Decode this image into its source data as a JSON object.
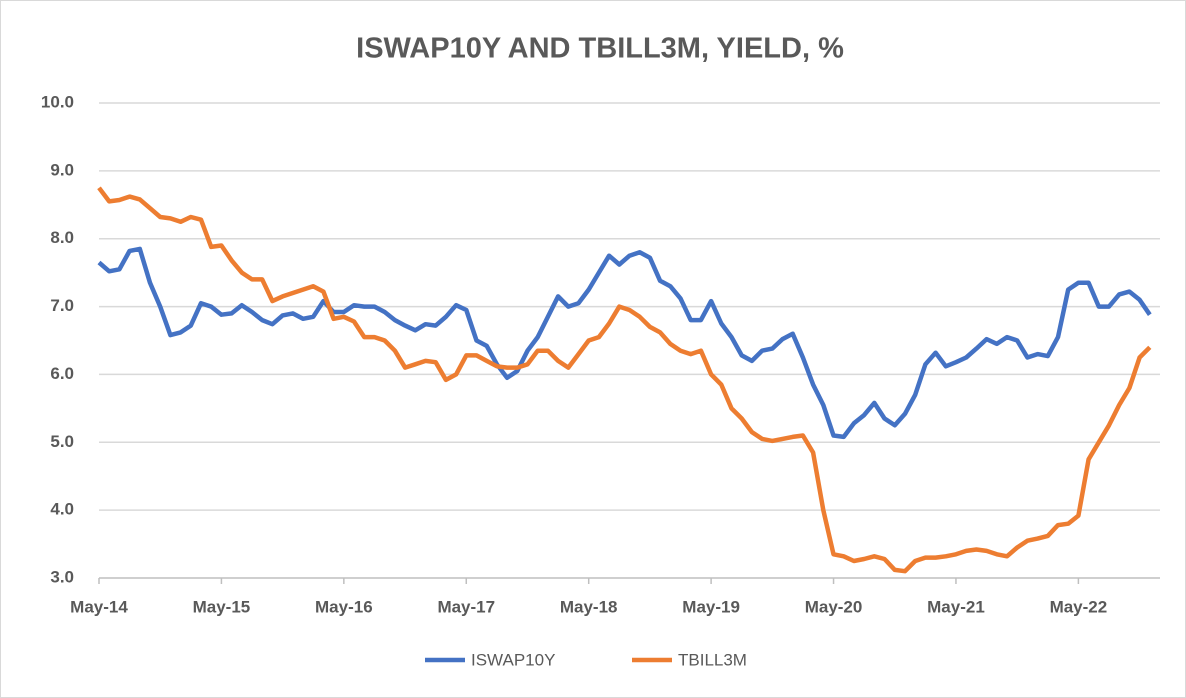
{
  "chart_data": {
    "type": "line",
    "title": "ISWAP10Y AND TBILL3M, YIELD, %",
    "categories": [
      "May-14",
      null,
      null,
      null,
      null,
      null,
      null,
      null,
      null,
      null,
      null,
      null,
      "May-15",
      null,
      null,
      null,
      null,
      null,
      null,
      null,
      null,
      null,
      null,
      null,
      "May-16",
      null,
      null,
      null,
      null,
      null,
      null,
      null,
      null,
      null,
      null,
      null,
      "May-17",
      null,
      null,
      null,
      null,
      null,
      null,
      null,
      null,
      null,
      null,
      null,
      "May-18",
      null,
      null,
      null,
      null,
      null,
      null,
      null,
      null,
      null,
      null,
      null,
      "May-19",
      null,
      null,
      null,
      null,
      null,
      null,
      null,
      null,
      null,
      null,
      null,
      "May-20",
      null,
      null,
      null,
      null,
      null,
      null,
      null,
      null,
      null,
      null,
      null,
      "May-21",
      null,
      null,
      null,
      null,
      null,
      null,
      null,
      null,
      null,
      null,
      null,
      "May-22",
      null,
      null,
      null,
      null,
      null,
      null,
      null
    ],
    "series": [
      {
        "name": "ISWAP10Y",
        "color": "#4472c4",
        "values": [
          7.65,
          7.52,
          7.55,
          7.82,
          7.85,
          7.35,
          7.0,
          6.58,
          6.62,
          6.72,
          7.05,
          7.0,
          6.88,
          6.9,
          7.02,
          6.92,
          6.8,
          6.74,
          6.87,
          6.9,
          6.82,
          6.85,
          7.08,
          6.92,
          6.92,
          7.02,
          7.0,
          7.0,
          6.92,
          6.8,
          6.72,
          6.65,
          6.74,
          6.72,
          6.85,
          7.02,
          6.95,
          6.5,
          6.42,
          6.15,
          5.95,
          6.05,
          6.35,
          6.55,
          6.85,
          7.15,
          7.0,
          7.05,
          7.25,
          7.5,
          7.75,
          7.62,
          7.75,
          7.8,
          7.72,
          7.38,
          7.3,
          7.12,
          6.8,
          6.8,
          7.08,
          6.75,
          6.55,
          6.28,
          6.2,
          6.35,
          6.38,
          6.52,
          6.6,
          6.25,
          5.85,
          5.55,
          5.1,
          5.08,
          5.28,
          5.4,
          5.58,
          5.35,
          5.25,
          5.42,
          5.7,
          6.15,
          6.32,
          6.12,
          6.18,
          6.25,
          6.38,
          6.52,
          6.45,
          6.55,
          6.5,
          6.25,
          6.3,
          6.27,
          6.55,
          7.25,
          7.35,
          7.35,
          7.0,
          7.0,
          7.18,
          7.22,
          7.1,
          6.88
        ]
      },
      {
        "name": "TBILL3M",
        "color": "#ed7d31",
        "values": [
          8.75,
          8.55,
          8.57,
          8.62,
          8.58,
          8.45,
          8.32,
          8.3,
          8.25,
          8.32,
          8.28,
          7.88,
          7.9,
          7.68,
          7.5,
          7.4,
          7.4,
          7.08,
          7.15,
          7.2,
          7.25,
          7.3,
          7.22,
          6.82,
          6.85,
          6.78,
          6.55,
          6.55,
          6.5,
          6.35,
          6.1,
          6.15,
          6.2,
          6.18,
          5.92,
          6.0,
          6.28,
          6.28,
          6.2,
          6.12,
          6.1,
          6.1,
          6.15,
          6.35,
          6.35,
          6.2,
          6.1,
          6.3,
          6.5,
          6.55,
          6.75,
          7.0,
          6.95,
          6.85,
          6.7,
          6.62,
          6.45,
          6.35,
          6.3,
          6.35,
          6.0,
          5.85,
          5.5,
          5.35,
          5.15,
          5.05,
          5.02,
          5.05,
          5.08,
          5.1,
          4.85,
          4.0,
          3.35,
          3.32,
          3.25,
          3.28,
          3.32,
          3.28,
          3.12,
          3.1,
          3.25,
          3.3,
          3.3,
          3.32,
          3.35,
          3.4,
          3.42,
          3.4,
          3.35,
          3.32,
          3.45,
          3.55,
          3.58,
          3.62,
          3.78,
          3.8,
          3.92,
          4.75,
          5.0,
          5.25,
          5.55,
          5.8,
          6.25,
          6.4
        ]
      }
    ],
    "ylim": [
      3,
      10
    ],
    "yticks": [
      {
        "value": 3,
        "label": "3.0"
      },
      {
        "value": 4,
        "label": "4.0"
      },
      {
        "value": 5,
        "label": "5.0"
      },
      {
        "value": 6,
        "label": "6.0"
      },
      {
        "value": 7,
        "label": "7.0"
      },
      {
        "value": 8,
        "label": "8.0"
      },
      {
        "value": 9,
        "label": "9.0"
      },
      {
        "value": 10,
        "label": "10.0"
      }
    ],
    "grid": true,
    "legend": "bottom"
  }
}
